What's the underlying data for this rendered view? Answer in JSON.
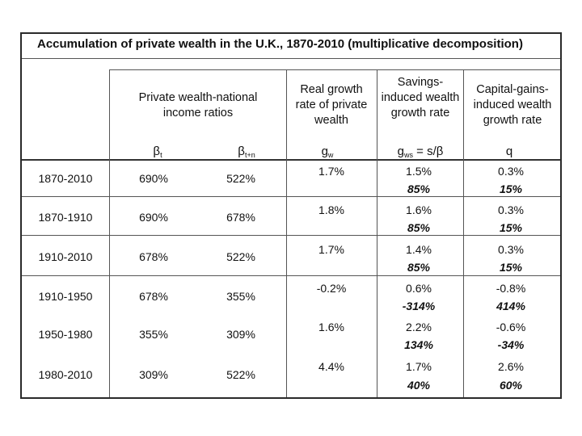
{
  "title": "Accumulation of private wealth in the U.K., 1870-2010 (multiplicative decomposition)",
  "headers": {
    "ratios": "Private wealth-national income ratios",
    "real_growth": "Real growth rate of private wealth",
    "savings_growth": "Savings-induced wealth growth rate",
    "capgains_growth": "Capital-gains-induced wealth growth rate"
  },
  "symbols": {
    "beta_t": "β",
    "beta_t_sub": "t",
    "beta_tn": "β",
    "beta_tn_sub": "t+n",
    "g_w": "g",
    "g_w_sub": "w",
    "g_ws": "g",
    "g_ws_sub": "ws",
    "g_ws_rest": " = s/β",
    "q": "q"
  },
  "rows": [
    {
      "period": "1870-2010",
      "beta_t": "690%",
      "beta_tn": "522%",
      "g_w": "1.7%",
      "g_ws": "1.5%",
      "g_ws_share": "85%",
      "q": "0.3%",
      "q_share": "15%"
    },
    {
      "period": "1870-1910",
      "beta_t": "690%",
      "beta_tn": "678%",
      "g_w": "1.8%",
      "g_ws": "1.6%",
      "g_ws_share": "85%",
      "q": "0.3%",
      "q_share": "15%"
    },
    {
      "period": "1910-2010",
      "beta_t": "678%",
      "beta_tn": "522%",
      "g_w": "1.7%",
      "g_ws": "1.4%",
      "g_ws_share": "85%",
      "q": "0.3%",
      "q_share": "15%"
    },
    {
      "period": "1910-1950",
      "beta_t": "678%",
      "beta_tn": "355%",
      "g_w": "-0.2%",
      "g_ws": "0.6%",
      "g_ws_share": "-314%",
      "q": "-0.8%",
      "q_share": "414%"
    },
    {
      "period": "1950-1980",
      "beta_t": "355%",
      "beta_tn": "309%",
      "g_w": "1.6%",
      "g_ws": "2.2%",
      "g_ws_share": "134%",
      "q": "-0.6%",
      "q_share": "-34%"
    },
    {
      "period": "1980-2010",
      "beta_t": "309%",
      "beta_tn": "522%",
      "g_w": "4.4%",
      "g_ws": "1.7%",
      "g_ws_share": "40%",
      "q": "2.6%",
      "q_share": "60%"
    }
  ]
}
